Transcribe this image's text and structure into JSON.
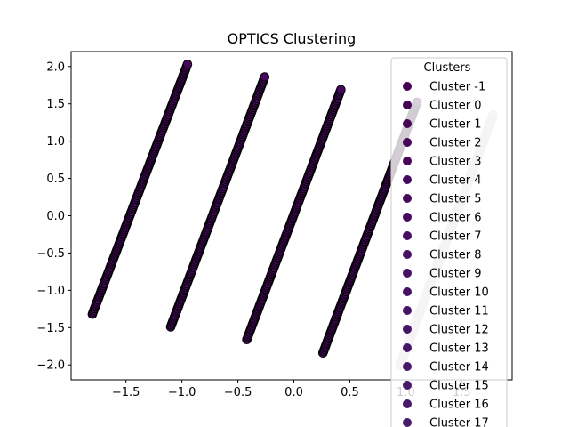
{
  "chart_data": {
    "type": "scatter",
    "title": "OPTICS Clustering",
    "xlabel": "",
    "ylabel": "",
    "xlim": [
      -1.99,
      1.95
    ],
    "ylim": [
      -2.2,
      2.2
    ],
    "xticks": [
      -1.5,
      -1.0,
      -0.5,
      0.0,
      0.5,
      1.0,
      1.5
    ],
    "yticks": [
      -2.0,
      -1.5,
      -1.0,
      -0.5,
      0.0,
      0.5,
      1.0,
      1.5,
      2.0
    ],
    "xtick_labels": [
      "−1.5",
      "−1.0",
      "−0.5",
      "0.0",
      "0.5",
      "1.0",
      "1.5"
    ],
    "ytick_labels": [
      "−2.0",
      "−1.5",
      "−1.0",
      "−0.5",
      "0.0",
      "0.5",
      "1.0",
      "1.5",
      "2.0"
    ],
    "grid": false,
    "legend": {
      "title": "Clusters",
      "placement": "upper right",
      "entries": [
        "Cluster -1",
        "Cluster 0",
        "Cluster 1",
        "Cluster 2",
        "Cluster 3",
        "Cluster 4",
        "Cluster 5",
        "Cluster 6",
        "Cluster 7",
        "Cluster 8",
        "Cluster 9",
        "Cluster 10",
        "Cluster 11",
        "Cluster 12",
        "Cluster 13",
        "Cluster 14",
        "Cluster 15",
        "Cluster 16",
        "Cluster 17"
      ],
      "colors": [
        "#440154",
        "#440256",
        "#450457",
        "#450559",
        "#46075a",
        "#46085c",
        "#460a5d",
        "#460b5e",
        "#470d60",
        "#470e61",
        "#471063",
        "#471164",
        "#471365",
        "#481467",
        "#481668",
        "#481769",
        "#48186a",
        "#481a6c",
        "#481b6d"
      ]
    },
    "series": [
      {
        "x_range": [
          -1.8,
          -0.95
        ],
        "y_range": [
          -1.32,
          2.03
        ],
        "color": "#46085c",
        "edge": "#000000"
      },
      {
        "x_range": [
          -1.1,
          -0.26
        ],
        "y_range": [
          -1.49,
          1.86
        ],
        "color": "#46085c",
        "edge": "#000000"
      },
      {
        "x_range": [
          -0.42,
          0.42
        ],
        "y_range": [
          -1.66,
          1.69
        ],
        "color": "#46085c",
        "edge": "#000000"
      },
      {
        "x_range": [
          0.26,
          1.1
        ],
        "y_range": [
          -1.84,
          1.52
        ],
        "color": "#46085c",
        "edge": "#000000"
      },
      {
        "x_range": [
          0.95,
          1.78
        ],
        "y_range": [
          -2.0,
          1.35
        ],
        "color": "#d8cfd8",
        "edge": "#cdbfcd"
      }
    ]
  }
}
